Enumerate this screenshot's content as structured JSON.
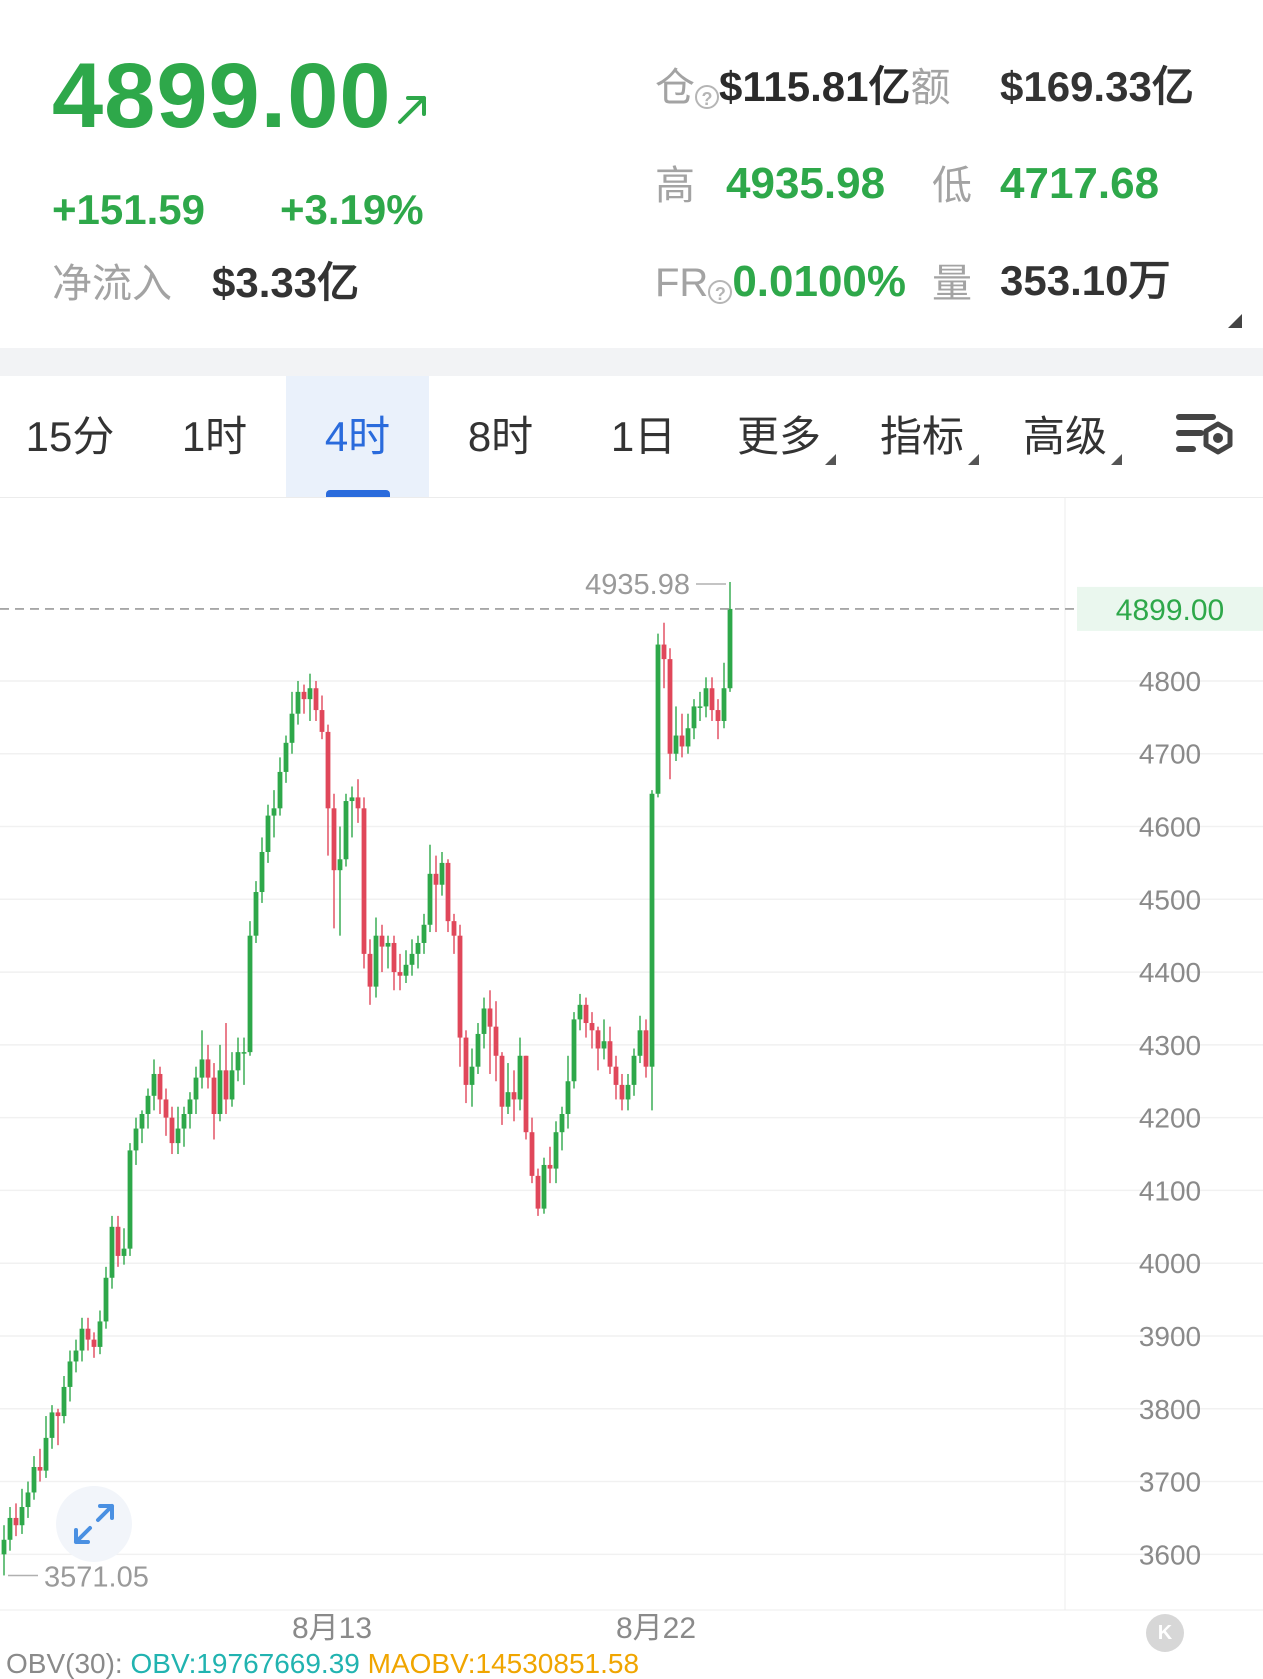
{
  "header": {
    "price": "4899.00",
    "change_abs": "+151.59",
    "change_pct": "+3.19%",
    "net_inflow_label": "净流入",
    "net_inflow_value": "$3.33亿",
    "open_interest_label": "仓",
    "open_interest_value": "$115.81亿",
    "turnover_label": "额",
    "turnover_value": "$169.33亿",
    "high_label": "高",
    "high_value": "4935.98",
    "low_label": "低",
    "low_value": "4717.68",
    "funding_label": "FR",
    "funding_value": "0.0100%",
    "volume_label": "量",
    "volume_value": "353.10万",
    "help_glyph": "?"
  },
  "tabs": [
    {
      "label": "15分",
      "active": false
    },
    {
      "label": "1时",
      "active": false
    },
    {
      "label": "4时",
      "active": true
    },
    {
      "label": "8时",
      "active": false
    },
    {
      "label": "1日",
      "active": false
    },
    {
      "label": "更多",
      "dropdown": true
    },
    {
      "label": "指标",
      "dropdown": true
    },
    {
      "label": "高级",
      "dropdown": true
    }
  ],
  "icons": {
    "trend": "arrow-up-right-icon",
    "settings": "chart-settings-icon",
    "expand": "expand-arrows-icon",
    "back": "back-to-latest-icon"
  },
  "indicator": {
    "name": "OBV(30):",
    "obv": "OBV:19767669.39",
    "maobv": "MAOBV:14530851.58"
  },
  "back_glyph": "K",
  "colors": {
    "up": "#2ea84a",
    "down": "#e0475a",
    "accent": "#2a6bdc",
    "obv": "#21b3b0",
    "maobv": "#f0a500"
  },
  "chart_data": {
    "type": "candlestick",
    "interval": "4时",
    "ylim": [
      3540,
      5050
    ],
    "yticks": [
      3600,
      3700,
      3800,
      3900,
      4000,
      4100,
      4200,
      4300,
      4400,
      4500,
      4600,
      4700,
      4800
    ],
    "x_labels": [
      {
        "index": 48,
        "label": "8月13"
      },
      {
        "index": 102,
        "label": "8月22"
      }
    ],
    "last_price_label": "4899.00",
    "max_label": "4935.98",
    "min_label": "3571.05",
    "candles": [
      [
        3600,
        3620,
        3571,
        3640
      ],
      [
        3620,
        3650,
        3605,
        3665
      ],
      [
        3650,
        3640,
        3625,
        3670
      ],
      [
        3640,
        3665,
        3628,
        3690
      ],
      [
        3665,
        3685,
        3650,
        3700
      ],
      [
        3685,
        3720,
        3675,
        3735
      ],
      [
        3720,
        3715,
        3700,
        3745
      ],
      [
        3715,
        3760,
        3705,
        3790
      ],
      [
        3760,
        3795,
        3745,
        3805
      ],
      [
        3795,
        3790,
        3750,
        3800
      ],
      [
        3790,
        3830,
        3780,
        3845
      ],
      [
        3830,
        3865,
        3810,
        3880
      ],
      [
        3865,
        3880,
        3850,
        3895
      ],
      [
        3880,
        3910,
        3865,
        3925
      ],
      [
        3910,
        3895,
        3880,
        3925
      ],
      [
        3895,
        3885,
        3870,
        3905
      ],
      [
        3885,
        3920,
        3875,
        3935
      ],
      [
        3920,
        3980,
        3910,
        3995
      ],
      [
        3980,
        4050,
        3965,
        4065
      ],
      [
        4050,
        4010,
        3995,
        4065
      ],
      [
        4010,
        4020,
        3998,
        4048
      ],
      [
        4020,
        4155,
        4010,
        4165
      ],
      [
        4155,
        4185,
        4135,
        4200
      ],
      [
        4185,
        4205,
        4165,
        4210
      ],
      [
        4205,
        4230,
        4185,
        4240
      ],
      [
        4230,
        4260,
        4210,
        4280
      ],
      [
        4260,
        4225,
        4205,
        4270
      ],
      [
        4225,
        4200,
        4175,
        4240
      ],
      [
        4200,
        4165,
        4150,
        4215
      ],
      [
        4165,
        4185,
        4150,
        4215
      ],
      [
        4185,
        4205,
        4160,
        4215
      ],
      [
        4205,
        4225,
        4185,
        4235
      ],
      [
        4225,
        4255,
        4205,
        4270
      ],
      [
        4255,
        4280,
        4240,
        4320
      ],
      [
        4280,
        4255,
        4240,
        4300
      ],
      [
        4255,
        4205,
        4170,
        4275
      ],
      [
        4205,
        4265,
        4195,
        4300
      ],
      [
        4265,
        4225,
        4205,
        4330
      ],
      [
        4225,
        4265,
        4215,
        4290
      ],
      [
        4265,
        4290,
        4250,
        4310
      ],
      [
        4290,
        4290,
        4245,
        4310
      ],
      [
        4290,
        4450,
        4285,
        4470
      ],
      [
        4450,
        4510,
        4440,
        4525
      ],
      [
        4510,
        4565,
        4495,
        4585
      ],
      [
        4565,
        4615,
        4550,
        4630
      ],
      [
        4615,
        4625,
        4585,
        4650
      ],
      [
        4625,
        4675,
        4615,
        4695
      ],
      [
        4675,
        4715,
        4660,
        4725
      ],
      [
        4715,
        4755,
        4700,
        4785
      ],
      [
        4755,
        4785,
        4740,
        4800
      ],
      [
        4785,
        4775,
        4755,
        4795
      ],
      [
        4775,
        4790,
        4745,
        4810
      ],
      [
        4790,
        4760,
        4745,
        4800
      ],
      [
        4760,
        4730,
        4720,
        4780
      ],
      [
        4730,
        4625,
        4560,
        4740
      ],
      [
        4625,
        4540,
        4460,
        4645
      ],
      [
        4540,
        4555,
        4450,
        4600
      ],
      [
        4555,
        4635,
        4545,
        4645
      ],
      [
        4635,
        4640,
        4585,
        4655
      ],
      [
        4640,
        4625,
        4605,
        4665
      ],
      [
        4625,
        4425,
        4405,
        4640
      ],
      [
        4425,
        4380,
        4355,
        4445
      ],
      [
        4380,
        4450,
        4365,
        4475
      ],
      [
        4450,
        4435,
        4400,
        4465
      ],
      [
        4435,
        4440,
        4405,
        4450
      ],
      [
        4440,
        4400,
        4375,
        4450
      ],
      [
        4400,
        4395,
        4375,
        4425
      ],
      [
        4395,
        4410,
        4385,
        4430
      ],
      [
        4410,
        4425,
        4395,
        4445
      ],
      [
        4425,
        4440,
        4405,
        4450
      ],
      [
        4440,
        4465,
        4425,
        4480
      ],
      [
        4465,
        4535,
        4455,
        4575
      ],
      [
        4535,
        4520,
        4455,
        4560
      ],
      [
        4520,
        4550,
        4505,
        4565
      ],
      [
        4550,
        4470,
        4455,
        4555
      ],
      [
        4470,
        4450,
        4425,
        4480
      ],
      [
        4450,
        4310,
        4270,
        4465
      ],
      [
        4310,
        4245,
        4220,
        4320
      ],
      [
        4245,
        4270,
        4215,
        4295
      ],
      [
        4270,
        4315,
        4260,
        4330
      ],
      [
        4315,
        4350,
        4295,
        4365
      ],
      [
        4350,
        4325,
        4260,
        4375
      ],
      [
        4325,
        4285,
        4250,
        4360
      ],
      [
        4285,
        4215,
        4190,
        4290
      ],
      [
        4215,
        4235,
        4205,
        4275
      ],
      [
        4235,
        4225,
        4195,
        4265
      ],
      [
        4225,
        4285,
        4210,
        4310
      ],
      [
        4285,
        4180,
        4170,
        4285
      ],
      [
        4180,
        4120,
        4110,
        4200
      ],
      [
        4120,
        4075,
        4065,
        4130
      ],
      [
        4075,
        4135,
        4068,
        4145
      ],
      [
        4135,
        4130,
        4110,
        4160
      ],
      [
        4130,
        4180,
        4110,
        4195
      ],
      [
        4180,
        4205,
        4155,
        4215
      ],
      [
        4205,
        4250,
        4185,
        4285
      ],
      [
        4250,
        4335,
        4240,
        4345
      ],
      [
        4335,
        4355,
        4320,
        4370
      ],
      [
        4355,
        4330,
        4310,
        4365
      ],
      [
        4330,
        4320,
        4295,
        4345
      ],
      [
        4320,
        4295,
        4265,
        4325
      ],
      [
        4295,
        4305,
        4280,
        4335
      ],
      [
        4305,
        4270,
        4260,
        4325
      ],
      [
        4270,
        4245,
        4225,
        4285
      ],
      [
        4245,
        4225,
        4210,
        4260
      ],
      [
        4225,
        4245,
        4210,
        4260
      ],
      [
        4245,
        4285,
        4230,
        4295
      ],
      [
        4285,
        4320,
        4275,
        4340
      ],
      [
        4320,
        4270,
        4255,
        4335
      ],
      [
        4270,
        4645,
        4210,
        4650
      ],
      [
        4645,
        4850,
        4640,
        4865
      ],
      [
        4850,
        4830,
        4790,
        4880
      ],
      [
        4830,
        4700,
        4665,
        4845
      ],
      [
        4700,
        4725,
        4690,
        4765
      ],
      [
        4725,
        4710,
        4695,
        4755
      ],
      [
        4710,
        4735,
        4700,
        4755
      ],
      [
        4735,
        4765,
        4720,
        4775
      ],
      [
        4765,
        4765,
        4745,
        4785
      ],
      [
        4765,
        4790,
        4750,
        4805
      ],
      [
        4790,
        4760,
        4745,
        4805
      ],
      [
        4760,
        4745,
        4720,
        4775
      ],
      [
        4745,
        4790,
        4735,
        4825
      ],
      [
        4790,
        4899,
        4785,
        4936
      ]
    ]
  }
}
